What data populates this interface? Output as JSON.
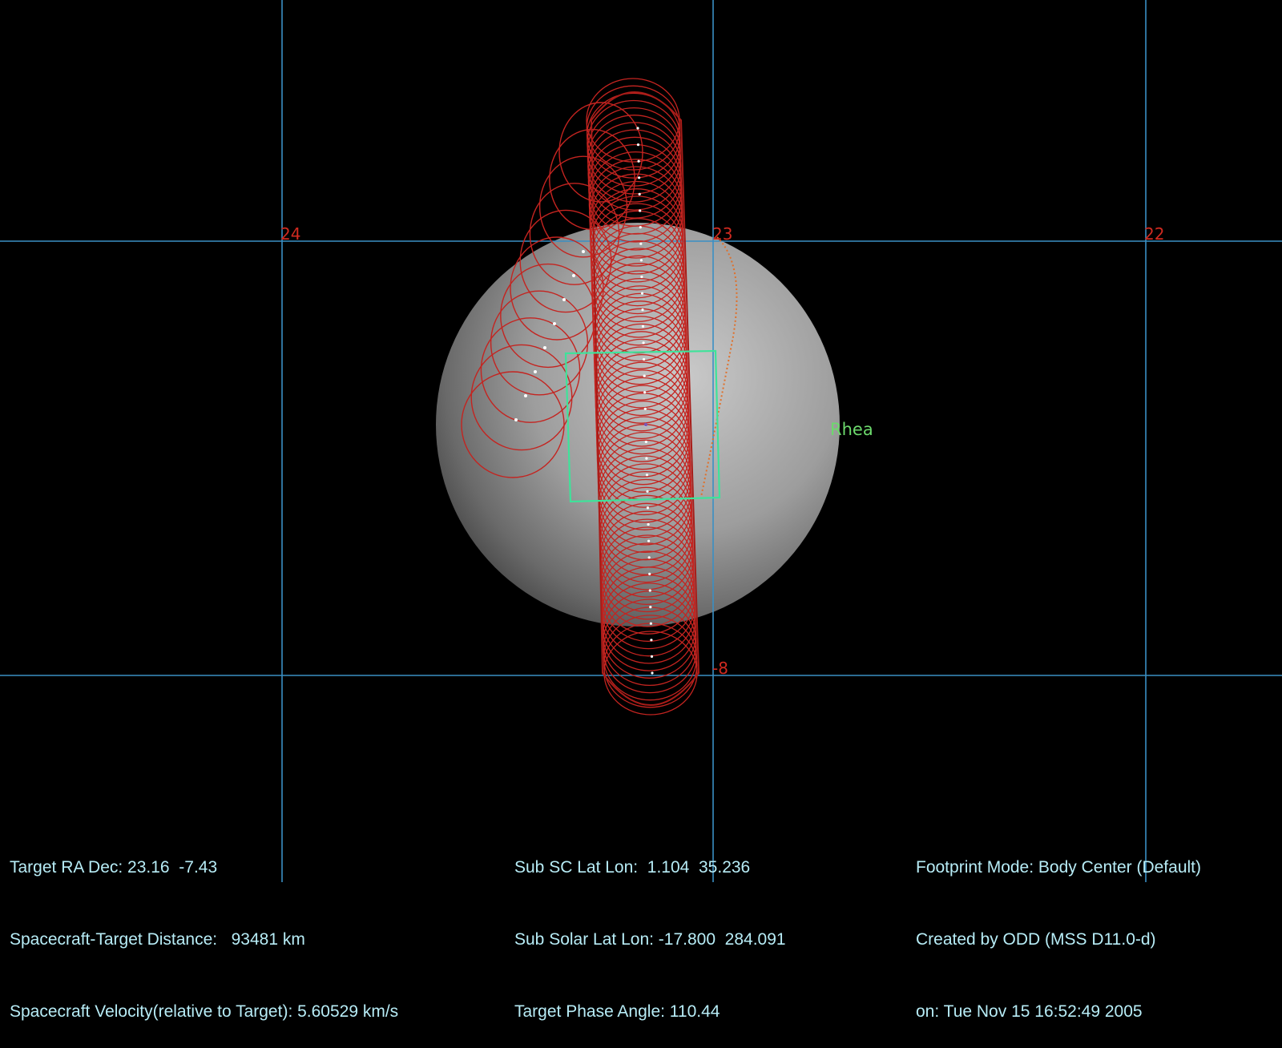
{
  "grid": {
    "ra_labels": [
      "24",
      "23",
      "22"
    ],
    "dec_labels": [
      "-8"
    ]
  },
  "target": {
    "name": "Rhea"
  },
  "colors": {
    "grid": "#3a8fc4",
    "trace": "#c42420",
    "fov": "#3ee39a",
    "limb": "#e0702a",
    "target_label": "#6cd96c",
    "info_text": "#b7ecf6"
  },
  "info": {
    "left": [
      "Target RA Dec: 23.16  -7.43",
      "Spacecraft-Target Distance:   93481 km",
      "Spacecraft Velocity(relative to Target): 5.60529 km/s"
    ],
    "middle": [
      "Sub SC Lat Lon:  1.104  35.236",
      "Sub Solar Lat Lon: -17.800  284.091",
      "Target Phase Angle: 110.44"
    ],
    "right": [
      "Footprint Mode: Body Center (Default)",
      "Created by ODD (MSS D11.0-d)",
      "on: Tue Nov 15 16:52:49 2005"
    ]
  }
}
